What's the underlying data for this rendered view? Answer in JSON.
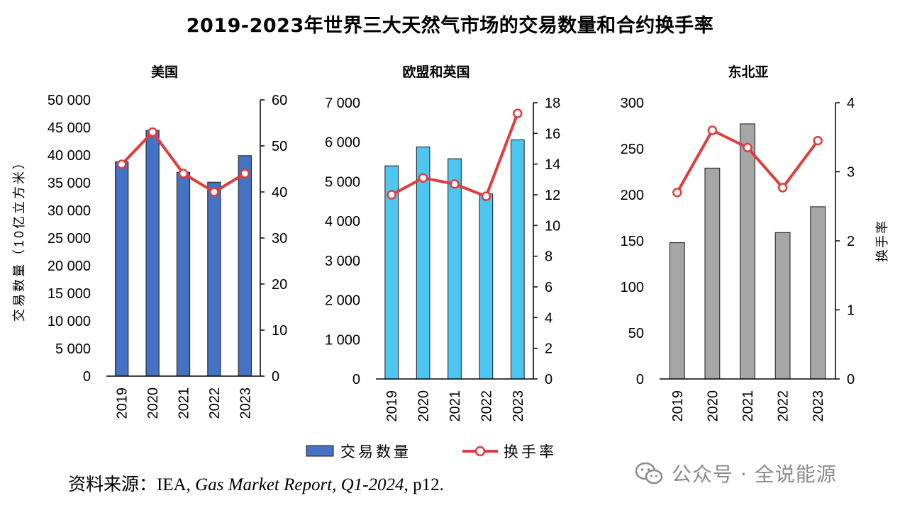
{
  "title": "2019-2023年世界三大天然气市场的交易数量和合约换手率",
  "source": {
    "prefix": "资料来源：IEA, ",
    "citation": "Gas Market Report, Q1-2024",
    "suffix": ", p12."
  },
  "watermark": {
    "icon": "wechat-icon",
    "text": "公众号 · 全说能源"
  },
  "legend": {
    "bar_label": "交易数量",
    "line_label": "换手率"
  },
  "colors": {
    "us_bar": "#4472C4",
    "eu_bar": "#4DC6F2",
    "asia_bar": "#A6A6A6",
    "line": "#E03C3C",
    "bar_border": "#1a1a1a"
  },
  "chart_data": [
    {
      "type": "bar+line",
      "title": "美国",
      "categories": [
        "2019",
        "2020",
        "2021",
        "2022",
        "2023"
      ],
      "series": [
        {
          "name": "交易数量",
          "type": "bar",
          "axis": "left",
          "values": [
            38800,
            44500,
            36900,
            35100,
            39900
          ]
        },
        {
          "name": "换手率",
          "type": "line",
          "axis": "right",
          "values": [
            46,
            53,
            44,
            40,
            44
          ]
        }
      ],
      "ylabel": "交易数量（10亿立方米）",
      "y2label": "",
      "ylim": [
        0,
        50000
      ],
      "yticks": [
        0,
        5000,
        10000,
        15000,
        20000,
        25000,
        30000,
        35000,
        40000,
        45000,
        50000
      ],
      "ytick_labels": [
        "0",
        "5 000",
        "10 000",
        "15 000",
        "20 000",
        "25 000",
        "30 000",
        "35 000",
        "40 000",
        "45 000",
        "50 000"
      ],
      "y2lim": [
        0,
        60
      ],
      "y2ticks": [
        0,
        10,
        20,
        30,
        40,
        50,
        60
      ],
      "y2tick_labels": [
        "0",
        "10",
        "20",
        "30",
        "40",
        "50",
        "60"
      ]
    },
    {
      "type": "bar+line",
      "title": "欧盟和英国",
      "categories": [
        "2019",
        "2020",
        "2021",
        "2022",
        "2023"
      ],
      "series": [
        {
          "name": "交易数量",
          "type": "bar",
          "axis": "left",
          "values": [
            5400,
            5880,
            5580,
            4690,
            6060
          ]
        },
        {
          "name": "换手率",
          "type": "line",
          "axis": "right",
          "values": [
            12.0,
            13.1,
            12.7,
            11.9,
            17.3
          ]
        }
      ],
      "ylabel": "",
      "y2label": "",
      "ylim": [
        0,
        7000
      ],
      "yticks": [
        0,
        1000,
        2000,
        3000,
        4000,
        5000,
        6000,
        7000
      ],
      "ytick_labels": [
        "0",
        "1 000",
        "2 000",
        "3 000",
        "4 000",
        "5 000",
        "6 000",
        "7 000"
      ],
      "y2lim": [
        0,
        18
      ],
      "y2ticks": [
        0,
        2,
        4,
        6,
        8,
        10,
        12,
        14,
        16,
        18
      ],
      "y2tick_labels": [
        "0",
        "2",
        "4",
        "6",
        "8",
        "10",
        "12",
        "14",
        "16",
        "18"
      ]
    },
    {
      "type": "bar+line",
      "title": "东北亚",
      "categories": [
        "2019",
        "2020",
        "2021",
        "2022",
        "2023"
      ],
      "series": [
        {
          "name": "交易数量",
          "type": "bar",
          "axis": "left",
          "values": [
            148,
            229,
            277,
            159,
            187
          ]
        },
        {
          "name": "换手率",
          "type": "line",
          "axis": "right",
          "values": [
            2.7,
            3.6,
            3.35,
            2.77,
            3.45
          ]
        }
      ],
      "ylabel": "",
      "y2label": "换手率",
      "ylim": [
        0,
        300
      ],
      "yticks": [
        0,
        50,
        100,
        150,
        200,
        250,
        300
      ],
      "ytick_labels": [
        "0",
        "50",
        "100",
        "150",
        "200",
        "250",
        "300"
      ],
      "y2lim": [
        0,
        4
      ],
      "y2ticks": [
        0,
        1,
        2,
        3,
        4
      ],
      "y2tick_labels": [
        "0",
        "1",
        "2",
        "3",
        "4"
      ]
    }
  ]
}
